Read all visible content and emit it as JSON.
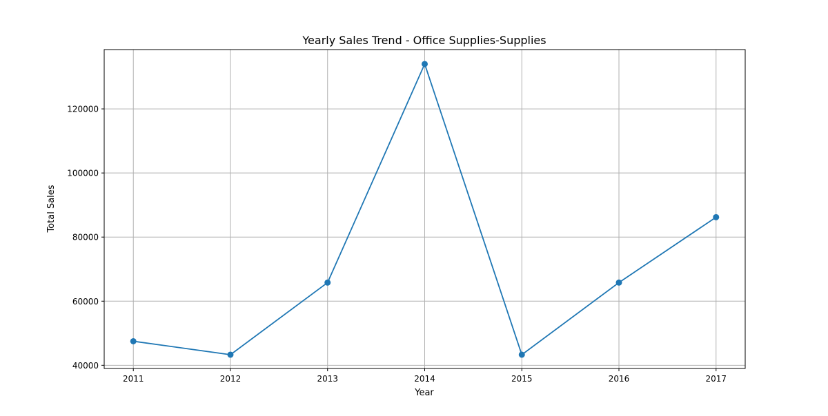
{
  "chart_data": {
    "type": "line",
    "title": "Yearly Sales Trend - Office Supplies-Supplies",
    "xlabel": "Year",
    "ylabel": "Total Sales",
    "x": [
      2011,
      2012,
      2013,
      2014,
      2015,
      2016,
      2017
    ],
    "x_tick_labels": [
      "2011",
      "2012",
      "2013",
      "2014",
      "2015",
      "2016",
      "2017"
    ],
    "y_ticks": [
      40000,
      60000,
      80000,
      100000,
      120000
    ],
    "y_tick_labels": [
      "40000",
      "60000",
      "80000",
      "100000",
      "120000"
    ],
    "xlim": [
      2010.7,
      2017.3
    ],
    "ylim": [
      39000,
      138500
    ],
    "grid": true,
    "markers": true,
    "series": [
      {
        "values": [
          47500,
          43300,
          65800,
          134000,
          43300,
          65800,
          86200
        ],
        "color": "#1f77b4"
      }
    ]
  }
}
